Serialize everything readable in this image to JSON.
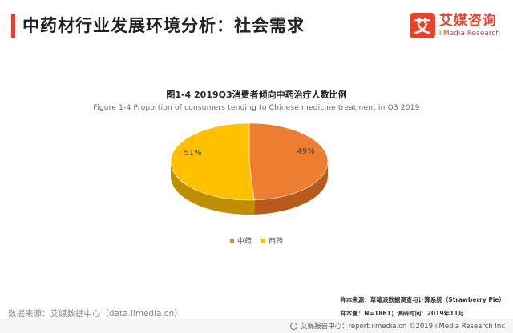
{
  "header": {
    "title": "中药材行业发展环境分析：社会需求",
    "brand_mark": "艾",
    "brand_cn": "艾媒咨询",
    "brand_en": "iiMedia Research"
  },
  "chart_data": {
    "type": "pie",
    "title": "图1-4 2019Q3消费者倾向中药治疗人数比例",
    "subtitle": "Figure 1-4 Proportion of consumers tending to Chinese medicine treatment in Q3 2019",
    "slices": [
      {
        "label": "中药",
        "value": 49,
        "display": "49%",
        "color": "#ed7d31",
        "side_color": "#b85a1c"
      },
      {
        "label": "西药",
        "value": 51,
        "display": "51%",
        "color": "#ffc000",
        "side_color": "#c08f00"
      }
    ],
    "legend_position": "bottom"
  },
  "source": {
    "left": "数据来源：艾媒数据中心（data.iimedia.cn）",
    "sample_source": "样本来源：草莓派数据调查与计算系统（Strawberry Pie）",
    "sample_size": "样本量：N=1861；调研时间：2019年11月"
  },
  "footer": {
    "text": "艾媒报告中心：report.iimedia.cn  ©2019  iiMedia Research  Inc"
  }
}
